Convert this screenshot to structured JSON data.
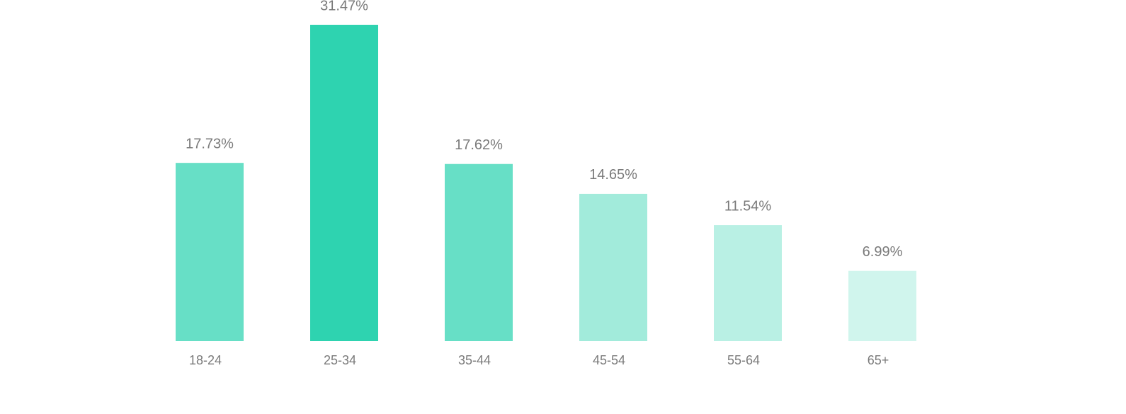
{
  "chart_data": {
    "type": "bar",
    "categories": [
      "18-24",
      "25-34",
      "35-44",
      "45-54",
      "55-64",
      "65+"
    ],
    "values": [
      17.73,
      31.47,
      17.62,
      14.65,
      11.54,
      6.99
    ],
    "value_labels": [
      "17.73%",
      "31.47%",
      "17.62%",
      "14.65%",
      "11.54%",
      "6.99%"
    ],
    "colors": [
      "#67dfc6",
      "#2ed3b0",
      "#67dfc6",
      "#a2ebdb",
      "#b9f0e4",
      "#d0f5ed"
    ]
  }
}
